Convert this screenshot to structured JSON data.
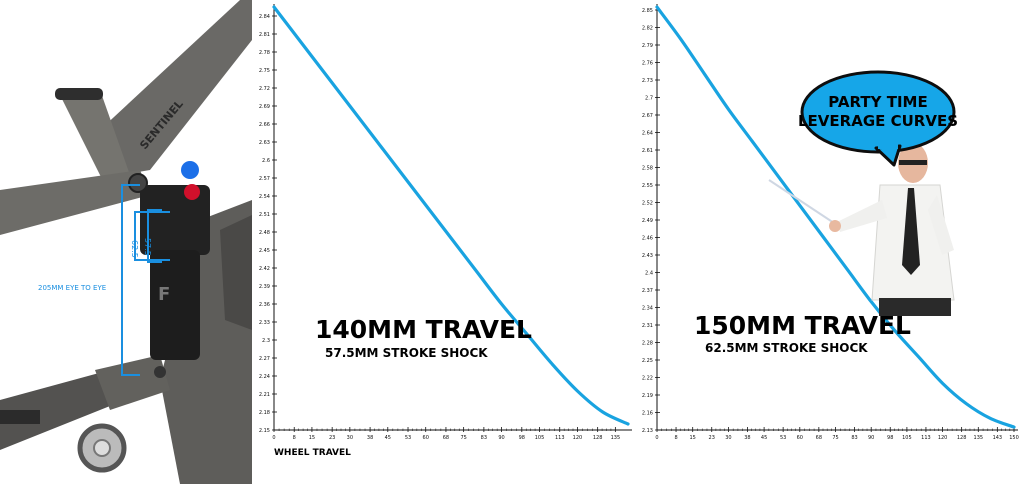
{
  "bike": {
    "dimension_label": "205MM EYE TO EYE",
    "stroke_label_1": "62.5",
    "stroke_label_2": "57.5",
    "brand_text": "SENTINEL"
  },
  "presenter": {
    "bubble_line1": "PARTY TIME",
    "bubble_line2": "LEVERAGE CURVES"
  },
  "colors": {
    "curve": "#19a3e0",
    "bubble": "#16a6e8",
    "bike_annotation": "#1a8fe0"
  },
  "chart_data": [
    {
      "type": "line",
      "title": "140MM TRAVEL",
      "subtitle": "57.5MM STROKE SHOCK",
      "xlabel": "WHEEL TRAVEL",
      "ylabel": "",
      "xlim": [
        0,
        140
      ],
      "ylim": [
        2.15,
        2.85
      ],
      "x_ticks": [
        "0",
        "8",
        "15",
        "23",
        "30",
        "38",
        "45",
        "53",
        "60",
        "68",
        "75",
        "83",
        "90",
        "98",
        "105",
        "113",
        "120",
        "128",
        "135"
      ],
      "y_ticks": [
        "2.84",
        "2.81",
        "2.78",
        "2.75",
        "2.72",
        "2.69",
        "2.66",
        "2.63",
        "2.6",
        "2.57",
        "2.54",
        "2.51",
        "2.48",
        "2.45",
        "2.42",
        "2.39",
        "2.36",
        "2.33",
        "2.3",
        "2.27",
        "2.24",
        "2.21",
        "2.18",
        "2.15"
      ],
      "series": [
        {
          "x": [
            0,
            10,
            20,
            30,
            40,
            50,
            60,
            70,
            80,
            90,
            100,
            110,
            120,
            130,
            140
          ],
          "y": [
            2.855,
            2.8,
            2.745,
            2.69,
            2.635,
            2.58,
            2.525,
            2.47,
            2.415,
            2.36,
            2.31,
            2.26,
            2.215,
            2.18,
            2.16
          ]
        }
      ]
    },
    {
      "type": "line",
      "title": "150MM TRAVEL",
      "subtitle": "62.5MM STROKE SHOCK",
      "xlabel": "",
      "ylabel": "",
      "xlim": [
        0,
        150
      ],
      "ylim": [
        2.13,
        2.85
      ],
      "x_ticks": [
        "0",
        "8",
        "15",
        "23",
        "30",
        "38",
        "45",
        "53",
        "60",
        "68",
        "75",
        "83",
        "90",
        "98",
        "105",
        "113",
        "120",
        "128",
        "135",
        "143",
        "150"
      ],
      "y_ticks": [
        "2.85",
        "2.82",
        "2.79",
        "2.76",
        "2.73",
        "2.7",
        "2.67",
        "2.64",
        "2.61",
        "2.58",
        "2.55",
        "2.52",
        "2.49",
        "2.46",
        "2.43",
        "2.4",
        "2.37",
        "2.34",
        "2.31",
        "2.28",
        "2.25",
        "2.22",
        "2.19",
        "2.16",
        "2.13"
      ],
      "series": [
        {
          "x": [
            0,
            10,
            20,
            30,
            40,
            50,
            60,
            70,
            80,
            90,
            100,
            110,
            120,
            130,
            140,
            150
          ],
          "y": [
            2.855,
            2.8,
            2.74,
            2.68,
            2.625,
            2.57,
            2.515,
            2.46,
            2.405,
            2.35,
            2.3,
            2.255,
            2.21,
            2.175,
            2.15,
            2.135
          ]
        }
      ]
    }
  ]
}
